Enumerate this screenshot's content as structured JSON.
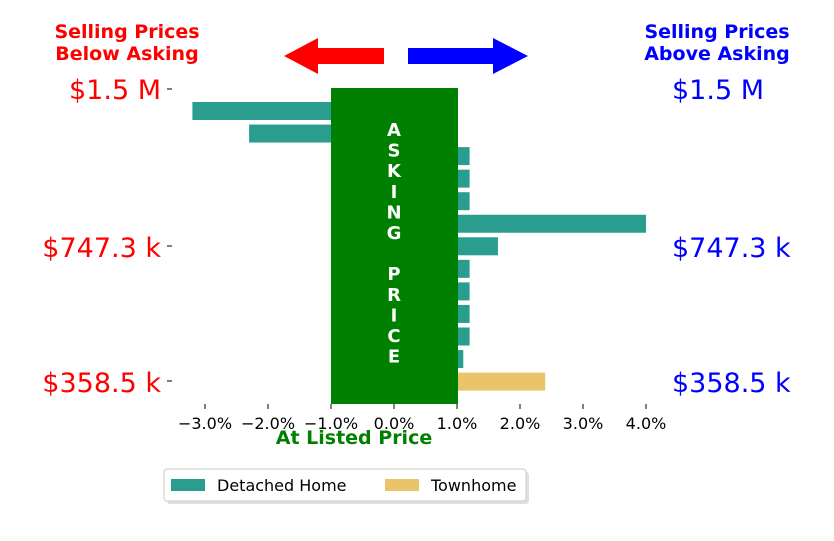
{
  "header": {
    "left_line1": "Selling Prices",
    "left_line2": "Below Asking",
    "right_line1": "Selling Prices",
    "right_line2": "Above Asking"
  },
  "price_labels": {
    "top": "$1.5 M",
    "mid": "$747.3 k",
    "bottom": "$358.5 k"
  },
  "center_band": {
    "letters": [
      "A",
      "S",
      "K",
      "I",
      "N",
      "G",
      "",
      "P",
      "R",
      "I",
      "C",
      "E"
    ],
    "xlabel": "At Listed Price"
  },
  "colors": {
    "detached": "#2a9d8f",
    "townhome": "#e9c46a",
    "band": "#008000",
    "left_text": "#ff0000",
    "right_text": "#0000ff",
    "left_arrow": "#ff0000",
    "right_arrow": "#0000ff"
  },
  "chart_data": {
    "type": "bar",
    "orientation": "horizontal",
    "xlabel": "At Listed Price",
    "xlim": [
      -3.5,
      4.0
    ],
    "x_ticks": [
      "−3.0%",
      "−2.0%",
      "−1.0%",
      "0.0%",
      "1.0%",
      "2.0%",
      "3.0%",
      "4.0%"
    ],
    "x_tick_values": [
      -3.0,
      -2.0,
      -1.0,
      0.0,
      1.0,
      2.0,
      3.0,
      4.0
    ],
    "y_ticks": [
      "$1.5 M",
      "$747.3 k",
      "$358.5 k"
    ],
    "legend": [
      "Detached Home",
      "Townhome"
    ],
    "legend_position": "bottom-center",
    "bars": [
      {
        "series": "Detached Home",
        "value": -3.2
      },
      {
        "series": "Detached Home",
        "value": -2.3
      },
      {
        "series": "Detached Home",
        "value": 1.2
      },
      {
        "series": "Detached Home",
        "value": 1.2
      },
      {
        "series": "Detached Home",
        "value": 1.2
      },
      {
        "series": "Detached Home",
        "value": 4.0
      },
      {
        "series": "Detached Home",
        "value": 1.65
      },
      {
        "series": "Detached Home",
        "value": 1.2
      },
      {
        "series": "Detached Home",
        "value": 1.2
      },
      {
        "series": "Detached Home",
        "value": 1.2
      },
      {
        "series": "Detached Home",
        "value": 1.2
      },
      {
        "series": "Detached Home",
        "value": 1.1
      },
      {
        "series": "Townhome",
        "value": 2.4
      }
    ]
  }
}
